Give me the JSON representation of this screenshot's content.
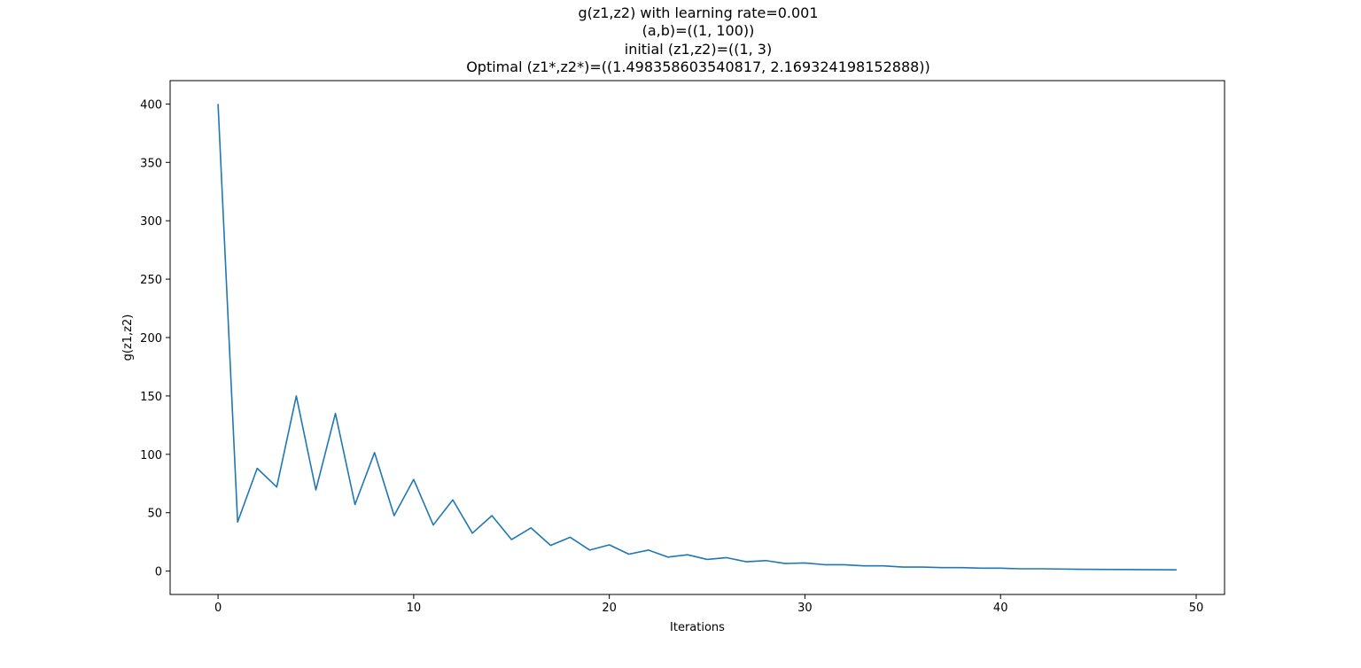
{
  "chart_data": {
    "type": "line",
    "title_lines": [
      "g(z1,z2) with learning rate=0.001",
      "(a,b)=((1, 100))",
      "initial (z1,z2)=((1, 3)",
      "Optimal (z1*,z2*)=((1.498358603540817, 2.169324198152888))"
    ],
    "xlabel": "Iterations",
    "ylabel": "g(z1,z2)",
    "xlim": [
      -2.45,
      51.45
    ],
    "ylim": [
      -20,
      420
    ],
    "xticks": [
      0,
      10,
      20,
      30,
      40,
      50
    ],
    "yticks": [
      0,
      50,
      100,
      150,
      200,
      250,
      300,
      350,
      400
    ],
    "grid": false,
    "line_color": "#1f77b4",
    "series": [
      {
        "x": [
          0,
          1,
          2,
          3,
          4,
          5,
          6,
          7,
          8,
          9,
          10,
          11,
          12,
          13,
          14,
          15,
          16,
          17,
          18,
          19,
          20,
          21,
          22,
          23,
          24,
          25,
          26,
          27,
          28,
          29,
          30,
          31,
          32,
          33,
          34,
          35,
          36,
          37,
          38,
          39,
          40,
          41,
          42,
          43,
          44,
          45,
          46,
          47,
          48,
          49
        ],
        "values": [
          400,
          42,
          88,
          72,
          150,
          69.5,
          135,
          57,
          101.5,
          47.5,
          78.5,
          39.5,
          61,
          32.5,
          47.5,
          27,
          37,
          22,
          29,
          18,
          22.5,
          14.5,
          18,
          12,
          14,
          10,
          11.5,
          8,
          9,
          6.5,
          7,
          5.5,
          5.5,
          4.5,
          4.5,
          3.5,
          3.5,
          3,
          3,
          2.5,
          2.5,
          2,
          2,
          1.8,
          1.6,
          1.5,
          1.4,
          1.3,
          1.2,
          1.1
        ]
      }
    ]
  }
}
